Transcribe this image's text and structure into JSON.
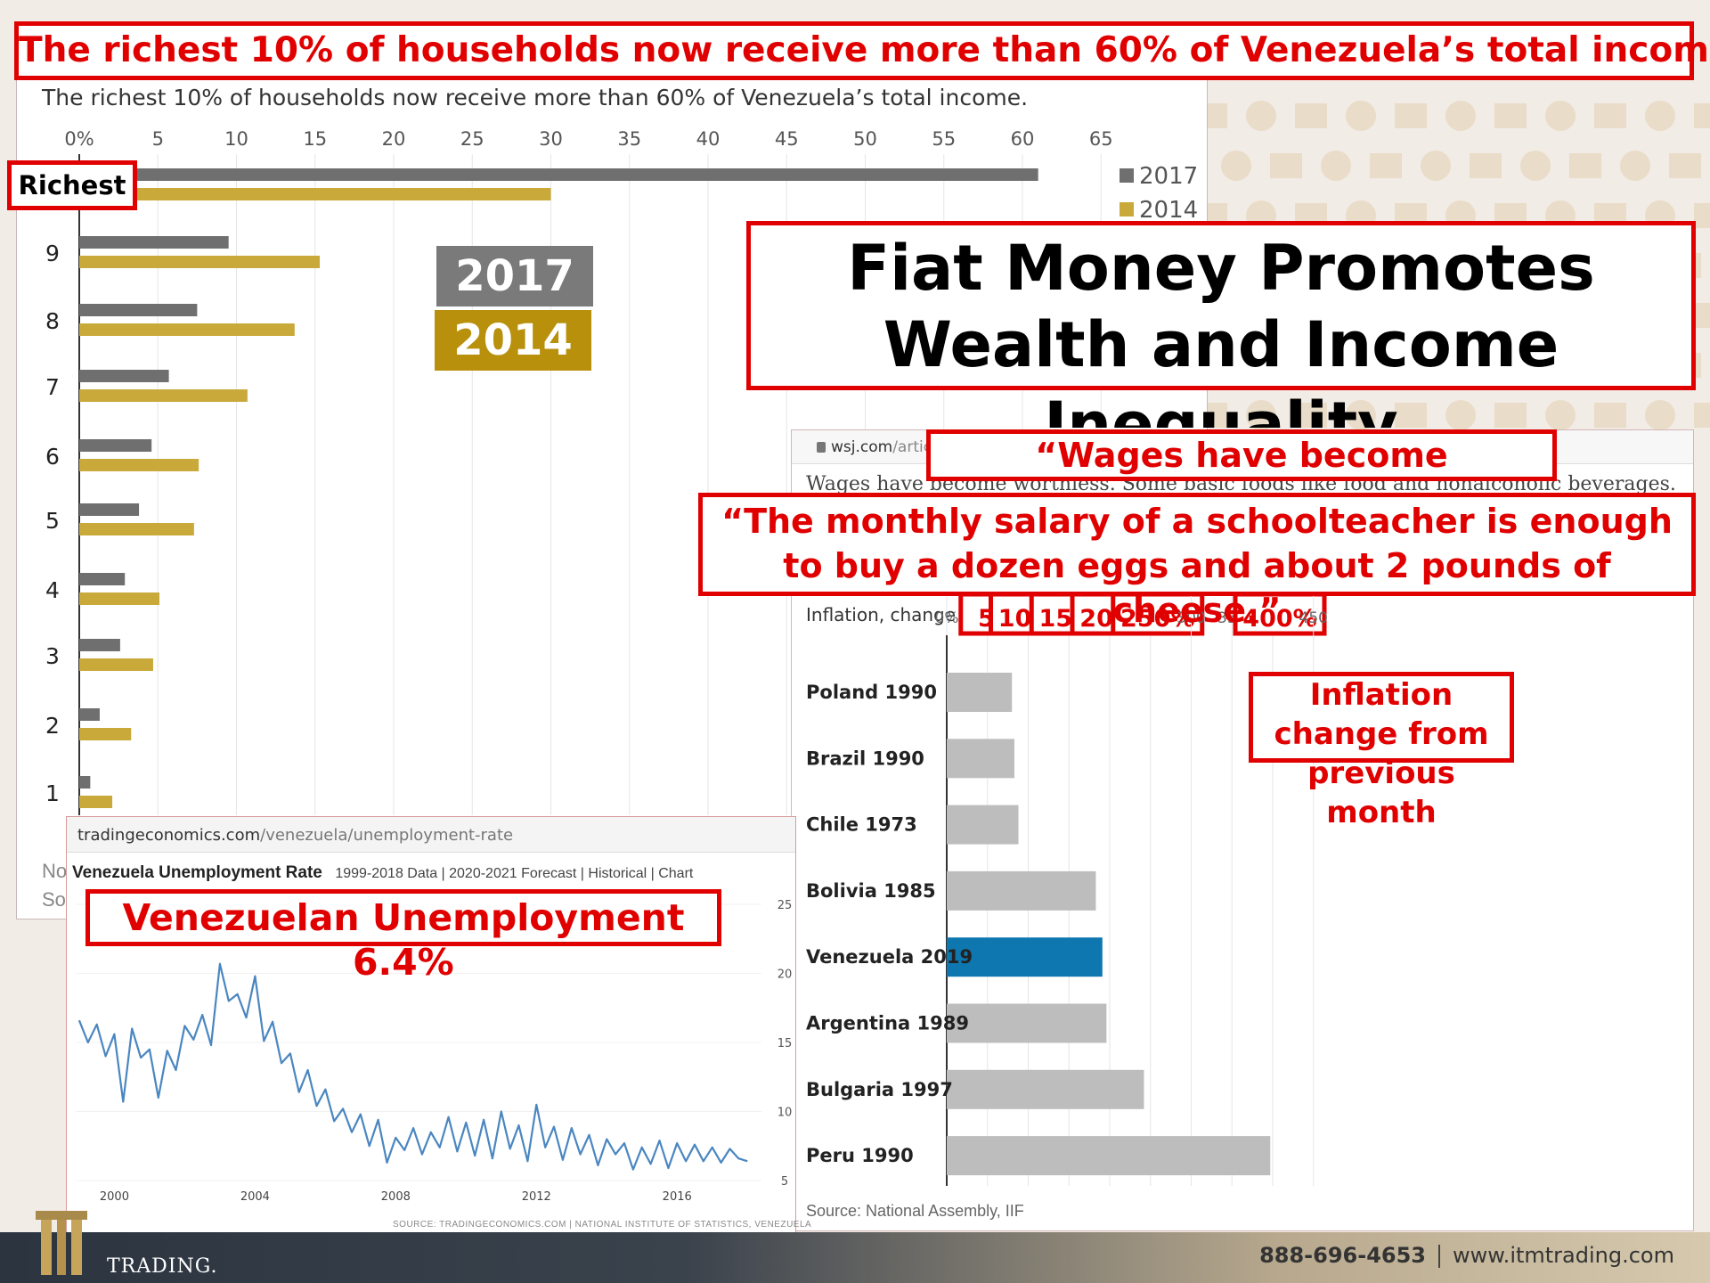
{
  "headline": "The richest 10% of households now receive more than 60% of Venezuela’s total income.",
  "main_title": [
    "Fiat Money Promotes",
    "Wealth and Income",
    "Inequality"
  ],
  "colors": {
    "accent_red": "#e00000",
    "grey_2017": "#6f6f6f",
    "gold_2014": "#c9a93a",
    "venezuela_blue": "#0f77b0",
    "bar_grey": "#bdbdbd",
    "line_blue": "#4a86c0"
  },
  "income_chart": {
    "title": "The richest 10% of households now receive more than 60% of Venezuela’s total income.",
    "richest_label": "Richest",
    "legend_2017": "2017",
    "legend_2014": "2014",
    "badge_2017": "2017",
    "badge_2014": "2014",
    "footnote_1": "No",
    "footnote_2": "So"
  },
  "wsj": {
    "url_domain": "wsj.com",
    "url_path": "/articles/",
    "wages_partial": "Wages have become worthless. Some basic foods like food and nonalcoholic beverages.",
    "quote_short": "“Wages have become",
    "quote_main": "“The monthly salary of a schoolteacher is enough to buy a dozen eggs and about 2 pounds of cheese.”",
    "chart_title": "Inflation, change from previous month",
    "callout": "Inflation change from previous month",
    "source": "Source: National Assembly, IIF"
  },
  "unemployment": {
    "url_domain": "tradingeconomics.com",
    "url_path": "/venezuela/unemployment-rate",
    "title": "Venezuela Unemployment Rate",
    "subtitle": "1999-2018 Data | 2020-2021 Forecast | Historical | Chart",
    "callout_line1": "Venezuelan Unemployment",
    "callout_line2": "6.4%",
    "source": "SOURCE: TRADINGECONOMICS.COM  |  NATIONAL INSTITUTE OF STATISTICS, VENEZUELA"
  },
  "footer": {
    "brand": "TRADING.",
    "phone": "888-696-4653",
    "website": "www.itmtrading.com"
  },
  "chart_data": [
    {
      "type": "bar",
      "title": "The richest 10% of households now receive more than 60% of Venezuela’s total income.",
      "orientation": "horizontal",
      "categories": [
        "Richest",
        "9",
        "8",
        "7",
        "6",
        "5",
        "4",
        "3",
        "2",
        "1"
      ],
      "series": [
        {
          "name": "2017",
          "values": [
            61,
            9.5,
            7.5,
            5.7,
            4.6,
            3.8,
            2.9,
            2.6,
            1.3,
            0.7
          ]
        },
        {
          "name": "2014",
          "values": [
            30,
            15.3,
            13.7,
            10.7,
            7.6,
            7.3,
            5.1,
            4.7,
            3.3,
            2.1
          ]
        }
      ],
      "xticks": [
        "0%",
        "5",
        "10",
        "15",
        "20",
        "25",
        "30",
        "35",
        "40",
        "45",
        "50",
        "55",
        "60",
        "65"
      ],
      "xlim": [
        0,
        65
      ],
      "legend": "top-right",
      "grid": true
    },
    {
      "type": "bar",
      "title": "Inflation, change from previous month",
      "orientation": "horizontal",
      "categories": [
        "Poland 1990",
        "Brazil 1990",
        "Chile 1973",
        "Bolivia 1985",
        "Venezuela 2019",
        "Argentina 1989",
        "Bulgaria 1997",
        "Peru 1990"
      ],
      "values": [
        80,
        83,
        88,
        183,
        191,
        196,
        242,
        397
      ],
      "xticks": [
        "0%",
        "50",
        "100%",
        "150%",
        "200%",
        "250%",
        "300",
        "350",
        "400%",
        "450"
      ],
      "tick_labels_boxed": [
        false,
        true,
        true,
        true,
        true,
        true,
        false,
        false,
        true,
        false
      ],
      "xlim": [
        0,
        450
      ],
      "highlight": "Venezuela 2019",
      "grid": true
    },
    {
      "type": "line",
      "title": "Venezuela Unemployment Rate",
      "x": [
        1999.0,
        1999.25,
        1999.5,
        1999.75,
        2000.0,
        2000.25,
        2000.5,
        2000.75,
        2001.0,
        2001.25,
        2001.5,
        2001.75,
        2002.0,
        2002.25,
        2002.5,
        2002.75,
        2003.0,
        2003.25,
        2003.5,
        2003.75,
        2004.0,
        2004.25,
        2004.5,
        2004.75,
        2005.0,
        2005.25,
        2005.5,
        2005.75,
        2006.0,
        2006.25,
        2006.5,
        2006.75,
        2007.0,
        2007.25,
        2007.5,
        2007.75,
        2008.0,
        2008.25,
        2008.5,
        2008.75,
        2009.0,
        2009.25,
        2009.5,
        2009.75,
        2010.0,
        2010.25,
        2010.5,
        2010.75,
        2011.0,
        2011.25,
        2011.5,
        2011.75,
        2012.0,
        2012.25,
        2012.5,
        2012.75,
        2013.0,
        2013.25,
        2013.5,
        2013.75,
        2014.0,
        2014.25,
        2014.5,
        2014.75,
        2015.0,
        2015.25,
        2015.5,
        2015.75,
        2016.0,
        2016.25,
        2016.5,
        2016.75,
        2017.0,
        2017.25,
        2017.5,
        2017.75,
        2018.0
      ],
      "y": [
        16.6,
        15.0,
        16.3,
        14.0,
        15.6,
        10.7,
        16.0,
        13.9,
        14.5,
        11.0,
        14.4,
        13.0,
        16.2,
        15.2,
        17.0,
        14.8,
        20.7,
        18.0,
        18.5,
        16.8,
        19.8,
        15.1,
        16.5,
        13.5,
        14.2,
        11.4,
        13.0,
        10.4,
        11.6,
        9.3,
        10.2,
        8.5,
        9.8,
        7.5,
        9.4,
        6.3,
        8.1,
        7.2,
        8.8,
        6.9,
        8.5,
        7.4,
        9.6,
        7.1,
        9.2,
        6.8,
        9.4,
        6.6,
        10.0,
        7.3,
        9.0,
        6.4,
        10.5,
        7.4,
        8.9,
        6.5,
        8.8,
        6.9,
        8.3,
        6.1,
        8.0,
        6.9,
        7.7,
        5.8,
        7.4,
        6.2,
        7.9,
        5.9,
        7.7,
        6.4,
        7.6,
        6.4,
        7.4,
        6.3,
        7.3,
        6.6,
        6.4
      ],
      "xticks": [
        "2000",
        "2004",
        "2008",
        "2012",
        "2016"
      ],
      "yticks": [
        "5",
        "10",
        "15",
        "20",
        "25"
      ],
      "ylim": [
        5,
        25
      ],
      "xlim": [
        1998.9,
        2018.4
      ]
    }
  ]
}
